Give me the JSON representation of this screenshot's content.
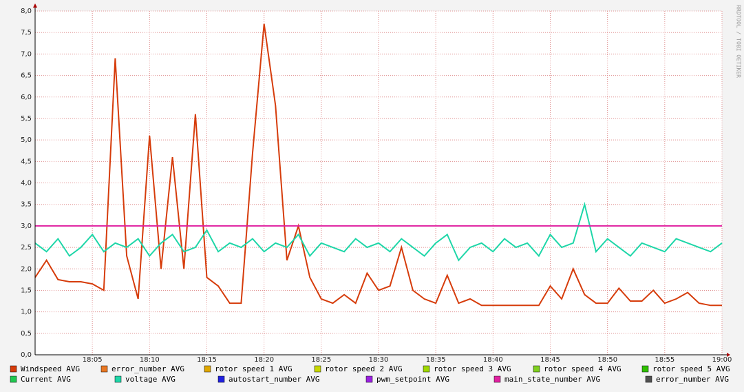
{
  "chart_data": {
    "type": "line",
    "watermark": "RRDTOOL / TOBI OETIKER",
    "x": [
      "18:00",
      "18:01",
      "18:02",
      "18:03",
      "18:04",
      "18:05",
      "18:06",
      "18:07",
      "18:08",
      "18:09",
      "18:10",
      "18:11",
      "18:12",
      "18:13",
      "18:14",
      "18:15",
      "18:16",
      "18:17",
      "18:18",
      "18:19",
      "18:20",
      "18:21",
      "18:22",
      "18:23",
      "18:24",
      "18:25",
      "18:26",
      "18:27",
      "18:28",
      "18:29",
      "18:30",
      "18:31",
      "18:32",
      "18:33",
      "18:34",
      "18:35",
      "18:36",
      "18:37",
      "18:38",
      "18:39",
      "18:40",
      "18:41",
      "18:42",
      "18:43",
      "18:44",
      "18:45",
      "18:46",
      "18:47",
      "18:48",
      "18:49",
      "18:50",
      "18:51",
      "18:52",
      "18:53",
      "18:54",
      "18:55",
      "18:56",
      "18:57",
      "18:58",
      "18:59",
      "19:00"
    ],
    "xlim": [
      "18:00",
      "19:00"
    ],
    "xticks": [
      "18:05",
      "18:10",
      "18:15",
      "18:20",
      "18:25",
      "18:30",
      "18:35",
      "18:40",
      "18:45",
      "18:50",
      "18:55",
      "19:00"
    ],
    "ylim": [
      0,
      8
    ],
    "yticks": [
      {
        "value": 0,
        "label": "0,0"
      },
      {
        "value": 0.5,
        "label": "0,5"
      },
      {
        "value": 1,
        "label": "1,0"
      },
      {
        "value": 1.5,
        "label": "1,5"
      },
      {
        "value": 2,
        "label": "2,0"
      },
      {
        "value": 2.5,
        "label": "2,5"
      },
      {
        "value": 3,
        "label": "3,0"
      },
      {
        "value": 3.5,
        "label": "3,5"
      },
      {
        "value": 4,
        "label": "4,0"
      },
      {
        "value": 4.5,
        "label": "4,5"
      },
      {
        "value": 5,
        "label": "5,0"
      },
      {
        "value": 5.5,
        "label": "5,5"
      },
      {
        "value": 6,
        "label": "6,0"
      },
      {
        "value": 6.5,
        "label": "6,5"
      },
      {
        "value": 7,
        "label": "7,0"
      },
      {
        "value": 7.5,
        "label": "7,5"
      },
      {
        "value": 8,
        "label": "8,0"
      }
    ],
    "grid": true,
    "series": [
      {
        "name": "Windspeed AVG",
        "color": "#d63c0b",
        "values": [
          1.8,
          2.2,
          1.75,
          1.7,
          1.7,
          1.65,
          1.5,
          6.9,
          2.3,
          1.3,
          5.1,
          2.0,
          4.6,
          2.0,
          5.6,
          1.8,
          1.6,
          1.2,
          1.2,
          4.7,
          7.7,
          5.8,
          2.2,
          3.0,
          1.8,
          1.3,
          1.2,
          1.4,
          1.2,
          1.9,
          1.5,
          1.6,
          2.5,
          1.5,
          1.3,
          1.2,
          1.85,
          1.2,
          1.3,
          1.15,
          1.15,
          1.15,
          1.15,
          1.15,
          1.15,
          1.6,
          1.3,
          2.0,
          1.4,
          1.2,
          1.2,
          1.55,
          1.25,
          1.25,
          1.5,
          1.2,
          1.3,
          1.45,
          1.2,
          1.15,
          1.15
        ]
      },
      {
        "name": "error_number AVG",
        "color": "#e87722",
        "values": [
          null,
          null,
          null,
          null,
          null,
          null,
          null,
          null,
          null,
          null,
          null,
          null,
          null,
          null,
          null,
          null,
          null,
          null,
          null,
          null,
          null,
          null,
          null,
          null,
          null,
          null,
          null,
          null,
          null,
          null,
          null,
          null,
          null,
          null,
          null,
          null,
          null,
          null,
          null,
          null,
          null,
          null,
          null,
          null,
          null,
          null,
          null,
          null,
          null,
          null,
          null,
          null,
          null,
          null,
          null,
          null,
          null,
          null,
          null,
          null,
          null
        ]
      },
      {
        "name": "rotor speed 1 AVG",
        "color": "#e0a800",
        "values": [
          null,
          null,
          null,
          null,
          null,
          null,
          null,
          null,
          null,
          null,
          null,
          null,
          null,
          null,
          null,
          null,
          null,
          null,
          null,
          null,
          null,
          null,
          null,
          null,
          null,
          null,
          null,
          null,
          null,
          null,
          null,
          null,
          null,
          null,
          null,
          null,
          null,
          null,
          null,
          null,
          null,
          null,
          null,
          null,
          null,
          null,
          null,
          null,
          null,
          null,
          null,
          null,
          null,
          null,
          null,
          null,
          null,
          null,
          null,
          null,
          null
        ]
      },
      {
        "name": "rotor speed 2 AVG",
        "color": "#c8d800",
        "values": [
          null,
          null,
          null,
          null,
          null,
          null,
          null,
          null,
          null,
          null,
          null,
          null,
          null,
          null,
          null,
          null,
          null,
          null,
          null,
          null,
          null,
          null,
          null,
          null,
          null,
          null,
          null,
          null,
          null,
          null,
          null,
          null,
          null,
          null,
          null,
          null,
          null,
          null,
          null,
          null,
          null,
          null,
          null,
          null,
          null,
          null,
          null,
          null,
          null,
          null,
          null,
          null,
          null,
          null,
          null,
          null,
          null,
          null,
          null,
          null,
          null
        ]
      },
      {
        "name": "rotor speed 3 AVG",
        "color": "#a0d800",
        "values": [
          null,
          null,
          null,
          null,
          null,
          null,
          null,
          null,
          null,
          null,
          null,
          null,
          null,
          null,
          null,
          null,
          null,
          null,
          null,
          null,
          null,
          null,
          null,
          null,
          null,
          null,
          null,
          null,
          null,
          null,
          null,
          null,
          null,
          null,
          null,
          null,
          null,
          null,
          null,
          null,
          null,
          null,
          null,
          null,
          null,
          null,
          null,
          null,
          null,
          null,
          null,
          null,
          null,
          null,
          null,
          null,
          null,
          null,
          null,
          null,
          null
        ]
      },
      {
        "name": "rotor speed 4 AVG",
        "color": "#80d020",
        "values": [
          null,
          null,
          null,
          null,
          null,
          null,
          null,
          null,
          null,
          null,
          null,
          null,
          null,
          null,
          null,
          null,
          null,
          null,
          null,
          null,
          null,
          null,
          null,
          null,
          null,
          null,
          null,
          null,
          null,
          null,
          null,
          null,
          null,
          null,
          null,
          null,
          null,
          null,
          null,
          null,
          null,
          null,
          null,
          null,
          null,
          null,
          null,
          null,
          null,
          null,
          null,
          null,
          null,
          null,
          null,
          null,
          null,
          null,
          null,
          null,
          null
        ]
      },
      {
        "name": "rotor speed 5 AVG",
        "color": "#30c000",
        "values": [
          null,
          null,
          null,
          null,
          null,
          null,
          null,
          null,
          null,
          null,
          null,
          null,
          null,
          null,
          null,
          null,
          null,
          null,
          null,
          null,
          null,
          null,
          null,
          null,
          null,
          null,
          null,
          null,
          null,
          null,
          null,
          null,
          null,
          null,
          null,
          null,
          null,
          null,
          null,
          null,
          null,
          null,
          null,
          null,
          null,
          null,
          null,
          null,
          null,
          null,
          null,
          null,
          null,
          null,
          null,
          null,
          null,
          null,
          null,
          null,
          null
        ]
      },
      {
        "name": "Current AVG",
        "color": "#20c850",
        "values": [
          null,
          null,
          null,
          null,
          null,
          null,
          null,
          null,
          null,
          null,
          null,
          null,
          null,
          null,
          null,
          null,
          null,
          null,
          null,
          null,
          null,
          null,
          null,
          null,
          null,
          null,
          null,
          null,
          null,
          null,
          null,
          null,
          null,
          null,
          null,
          null,
          null,
          null,
          null,
          null,
          null,
          null,
          null,
          null,
          null,
          null,
          null,
          null,
          null,
          null,
          null,
          null,
          null,
          null,
          null,
          null,
          null,
          null,
          null,
          null,
          null
        ]
      },
      {
        "name": "voltage AVG",
        "color": "#1ed6a8",
        "values": [
          2.6,
          2.4,
          2.7,
          2.3,
          2.5,
          2.8,
          2.4,
          2.6,
          2.5,
          2.7,
          2.3,
          2.6,
          2.8,
          2.4,
          2.5,
          2.9,
          2.4,
          2.6,
          2.5,
          2.7,
          2.4,
          2.6,
          2.5,
          2.8,
          2.3,
          2.6,
          2.5,
          2.4,
          2.7,
          2.5,
          2.6,
          2.4,
          2.7,
          2.5,
          2.3,
          2.6,
          2.8,
          2.2,
          2.5,
          2.6,
          2.4,
          2.7,
          2.5,
          2.6,
          2.3,
          2.8,
          2.5,
          2.6,
          3.5,
          2.4,
          2.7,
          2.5,
          2.3,
          2.6,
          2.5,
          2.4,
          2.7,
          2.6,
          2.5,
          2.4,
          2.6
        ]
      },
      {
        "name": "autostart_number AVG",
        "color": "#2020e0",
        "values": [
          null,
          null,
          null,
          null,
          null,
          null,
          null,
          null,
          null,
          null,
          null,
          null,
          null,
          null,
          null,
          null,
          null,
          null,
          null,
          null,
          null,
          null,
          null,
          null,
          null,
          null,
          null,
          null,
          null,
          null,
          null,
          null,
          null,
          null,
          null,
          null,
          null,
          null,
          null,
          null,
          null,
          null,
          null,
          null,
          null,
          null,
          null,
          null,
          null,
          null,
          null,
          null,
          null,
          null,
          null,
          null,
          null,
          null,
          null,
          null,
          null
        ]
      },
      {
        "name": "pwm_setpoint AVG",
        "color": "#9a20e0",
        "values": [
          null,
          null,
          null,
          null,
          null,
          null,
          null,
          null,
          null,
          null,
          null,
          null,
          null,
          null,
          null,
          null,
          null,
          null,
          null,
          null,
          null,
          null,
          null,
          null,
          null,
          null,
          null,
          null,
          null,
          null,
          null,
          null,
          null,
          null,
          null,
          null,
          null,
          null,
          null,
          null,
          null,
          null,
          null,
          null,
          null,
          null,
          null,
          null,
          null,
          null,
          null,
          null,
          null,
          null,
          null,
          null,
          null,
          null,
          null,
          null,
          null
        ]
      },
      {
        "name": "main_state_number AVG",
        "color": "#e020a0",
        "values": [
          3,
          3,
          3,
          3,
          3,
          3,
          3,
          3,
          3,
          3,
          3,
          3,
          3,
          3,
          3,
          3,
          3,
          3,
          3,
          3,
          3,
          3,
          3,
          3,
          3,
          3,
          3,
          3,
          3,
          3,
          3,
          3,
          3,
          3,
          3,
          3,
          3,
          3,
          3,
          3,
          3,
          3,
          3,
          3,
          3,
          3,
          3,
          3,
          3,
          3,
          3,
          3,
          3,
          3,
          3,
          3,
          3,
          3,
          3,
          3,
          3
        ]
      },
      {
        "name": "error_number AVG",
        "color": "#505050",
        "values": [
          null,
          null,
          null,
          null,
          null,
          null,
          null,
          null,
          null,
          null,
          null,
          null,
          null,
          null,
          null,
          null,
          null,
          null,
          null,
          null,
          null,
          null,
          null,
          null,
          null,
          null,
          null,
          null,
          null,
          null,
          null,
          null,
          null,
          null,
          null,
          null,
          null,
          null,
          null,
          null,
          null,
          null,
          null,
          null,
          null,
          null,
          null,
          null,
          null,
          null,
          null,
          null,
          null,
          null,
          null,
          null,
          null,
          null,
          null,
          null,
          null
        ]
      }
    ]
  }
}
